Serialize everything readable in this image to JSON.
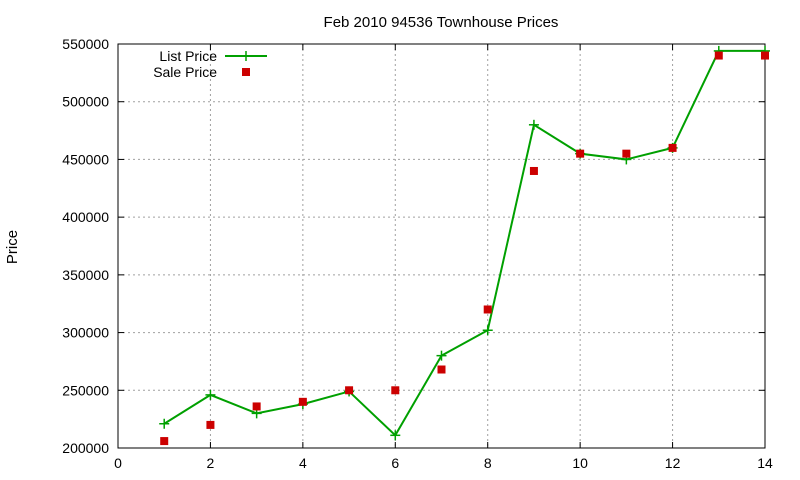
{
  "chart_data": {
    "type": "line",
    "title": "Feb 2010 94536 Townhouse Prices",
    "xlabel": "",
    "ylabel": "Price",
    "xlim": [
      0,
      14
    ],
    "ylim": [
      200000,
      550000
    ],
    "x_ticks": [
      "0",
      "2",
      "4",
      "6",
      "8",
      "10",
      "12",
      "14"
    ],
    "y_ticks": [
      "200000",
      "250000",
      "300000",
      "350000",
      "400000",
      "450000",
      "500000",
      "550000"
    ],
    "grid": true,
    "legend_position": "top-left",
    "series": [
      {
        "name": "List Price",
        "style": "line-with-plus-markers",
        "color": "#00a000",
        "x": [
          1,
          2,
          3,
          4,
          5,
          6,
          7,
          8,
          9,
          10,
          11,
          12,
          13,
          14
        ],
        "y": [
          221000,
          246000,
          230000,
          238000,
          249000,
          211000,
          280000,
          302000,
          480000,
          455000,
          450000,
          460000,
          544000,
          544000
        ]
      },
      {
        "name": "Sale Price",
        "style": "square-markers",
        "color": "#cc0000",
        "x": [
          1,
          2,
          3,
          4,
          5,
          6,
          7,
          8,
          9,
          10,
          11,
          12,
          13,
          14
        ],
        "y": [
          206000,
          220000,
          236000,
          240000,
          250000,
          250000,
          268000,
          320000,
          440000,
          455000,
          455000,
          460000,
          540000,
          540000
        ]
      }
    ]
  }
}
